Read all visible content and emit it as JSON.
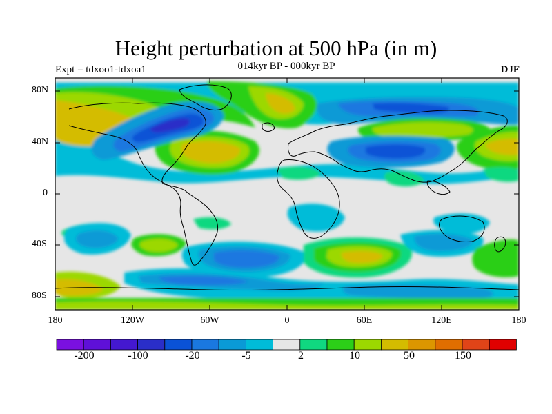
{
  "title": "Height perturbation at 500 hPa (in m)",
  "subtitle": "014kyr BP - 000kyr BP",
  "experiment": "Expt = tdxoo1-tdxoa1",
  "season": "DJF",
  "lat_ticks": [
    "80N",
    "40N",
    "0",
    "40S",
    "80S"
  ],
  "lon_ticks": [
    "180",
    "120W",
    "60W",
    "0",
    "60E",
    "120E",
    "180"
  ],
  "colorbar": {
    "colors": [
      "#7a10e0",
      "#5f10d8",
      "#4418d0",
      "#2a2ec8",
      "#0a52d6",
      "#1a78e0",
      "#0a9ad6",
      "#00bcd8",
      "#e6e6e6",
      "#10d880",
      "#2ccf18",
      "#9cd800",
      "#d4bc00",
      "#dc9600",
      "#e06e00",
      "#e04418",
      "#e00000"
    ],
    "labels": [
      "-200",
      "-100",
      "-20",
      "-5",
      "2",
      "10",
      "50",
      "150"
    ]
  },
  "map_background": "#e6e6e6",
  "map_features": {
    "positive_anomalies": [
      "North Pacific (~40N,160W)",
      "Western North Atlantic (~35N,60W)",
      "North Atlantic / Greenland (~70N,30W)",
      "Southern Indian Ocean (~45S,60E)",
      "Eastern Asia (~50N,100E)"
    ],
    "negative_anomalies": [
      "North America / Laurentide (~55N,90W)",
      "Siberia (~70N,120E)",
      "Central Asia (~35N,70E)",
      "South Pacific (~40S,130W)",
      "Southern Ocean / Antarctic rim"
    ]
  }
}
